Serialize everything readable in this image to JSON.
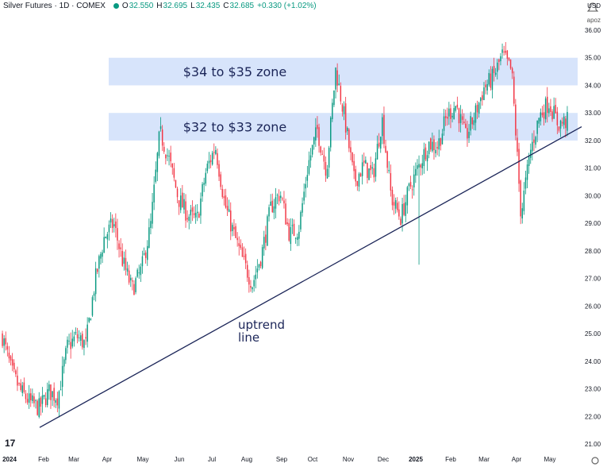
{
  "header": {
    "title": "Silver Futures · 1D · COMEX",
    "open_label": "O",
    "open": "32.550",
    "high_label": "H",
    "high": "32.695",
    "low_label": "L",
    "low": "32.435",
    "close_label": "C",
    "close": "32.685",
    "change": "+0.330 (+1.02%)"
  },
  "currency": "USD",
  "currency_sub": "apoz",
  "logo_text": "17",
  "colors": {
    "up": "#089981",
    "down": "#f23645",
    "zone": "#d7e4fb",
    "trendline": "#1b2558",
    "annotation": "#1b2558",
    "axis_text": "#131722"
  },
  "chart_data": {
    "type": "candlestick",
    "ylim": [
      21.0,
      36.0
    ],
    "yticks": [
      "36.00",
      "35.00",
      "34.00",
      "33.00",
      "32.00",
      "31.00",
      "30.00",
      "29.00",
      "28.00",
      "27.00",
      "26.00",
      "25.00",
      "24.00",
      "23.00",
      "22.00",
      "21.00"
    ],
    "xticks": [
      "2024",
      "Feb",
      "Mar",
      "Apr",
      "May",
      "Jun",
      "Jul",
      "Aug",
      "Sep",
      "Oct",
      "Nov",
      "Dec",
      "2025",
      "Feb",
      "Mar",
      "Apr",
      "May"
    ],
    "zones": [
      {
        "label": "$34 to $35 zone",
        "low": 34.0,
        "high": 35.0
      },
      {
        "label": "$32 to $33 zone",
        "low": 32.0,
        "high": 33.0
      }
    ],
    "trendline": {
      "label_line1": "uptrend",
      "label_line2": "line",
      "start": 21.6,
      "end": 32.5
    },
    "price_path": [
      24.9,
      23.6,
      22.9,
      22.5,
      22.3,
      22.9,
      22.7,
      24.5,
      24.9,
      24.6,
      26.9,
      28.5,
      29.0,
      27.6,
      26.6,
      27.3,
      28.9,
      32.3,
      31.3,
      29.9,
      29.3,
      29.1,
      30.9,
      31.8,
      29.7,
      28.6,
      27.6,
      26.8,
      27.9,
      29.6,
      30.1,
      28.6,
      28.8,
      31.1,
      32.4,
      30.9,
      34.6,
      32.7,
      30.5,
      31.1,
      30.7,
      32.8,
      29.9,
      29.2,
      30.3,
      31.1,
      31.9,
      31.8,
      32.9,
      33.3,
      32.1,
      32.9,
      33.9,
      34.3,
      35.1,
      34.5,
      29.3,
      31.6,
      32.9,
      33.4,
      32.6,
      32.7
    ]
  }
}
